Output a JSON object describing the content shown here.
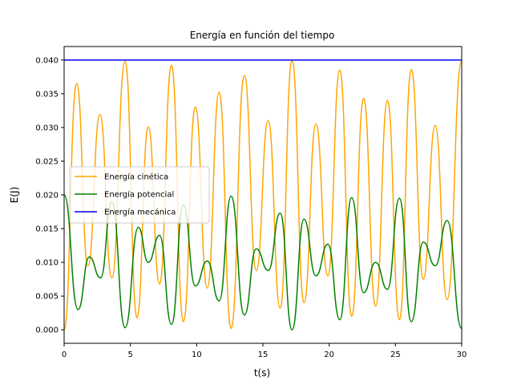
{
  "chart_data": {
    "type": "line",
    "title": "Energía en función del tiempo",
    "xlabel": "t(s)",
    "ylabel": "E(J)",
    "xlim": [
      0,
      30
    ],
    "ylim": [
      -0.002,
      0.042
    ],
    "grid": false,
    "legend_position": "center-left",
    "x_ticks": [
      "0",
      "5",
      "10",
      "15",
      "20",
      "25",
      "30"
    ],
    "y_ticks": [
      "0.000",
      "0.005",
      "0.010",
      "0.015",
      "0.020",
      "0.025",
      "0.030",
      "0.035",
      "0.040"
    ],
    "series": [
      {
        "name": "Energía cinética",
        "color": "#FFA500",
        "x": [
          0,
          0.95,
          1.8,
          2.7,
          3.6,
          4.6,
          5.5,
          6.35,
          7.2,
          8.1,
          9.0,
          9.9,
          10.8,
          11.7,
          12.6,
          13.6,
          14.5,
          15.4,
          16.3,
          17.2,
          18.1,
          19.0,
          19.9,
          20.8,
          21.7,
          22.6,
          23.5,
          24.4,
          25.3,
          26.2,
          27.1,
          28.0,
          28.9,
          30.0
        ],
        "y": [
          0.0,
          0.0365,
          0.0095,
          0.0319,
          0.0077,
          0.0398,
          0.0018,
          0.0301,
          0.0068,
          0.0392,
          0.0012,
          0.033,
          0.0062,
          0.0352,
          0.0002,
          0.0377,
          0.0088,
          0.031,
          0.0032,
          0.04,
          0.004,
          0.0305,
          0.008,
          0.0385,
          0.002,
          0.0343,
          0.0035,
          0.034,
          0.0015,
          0.0386,
          0.0075,
          0.0303,
          0.0045,
          0.0398
        ]
      },
      {
        "name": "Energía potencial",
        "color": "#008000",
        "x": [
          0,
          1.05,
          1.9,
          2.75,
          3.6,
          4.6,
          5.6,
          6.35,
          7.2,
          8.1,
          9.0,
          9.9,
          10.8,
          11.7,
          12.6,
          13.6,
          14.5,
          15.4,
          16.3,
          17.2,
          18.1,
          19.0,
          19.9,
          20.8,
          21.7,
          22.6,
          23.5,
          24.4,
          25.3,
          26.2,
          27.1,
          28.0,
          28.9,
          30.0
        ],
        "y": [
          0.02,
          0.003,
          0.0108,
          0.0077,
          0.019,
          0.0003,
          0.0152,
          0.01,
          0.014,
          0.0008,
          0.0185,
          0.0065,
          0.0102,
          0.0043,
          0.0198,
          0.0022,
          0.012,
          0.0088,
          0.0173,
          0.0,
          0.0164,
          0.008,
          0.0127,
          0.0015,
          0.0196,
          0.0055,
          0.01,
          0.006,
          0.0195,
          0.0012,
          0.013,
          0.0095,
          0.0162,
          0.0002
        ]
      },
      {
        "name": "Energía mecánica",
        "color": "#0000FF",
        "x": [
          0,
          30
        ],
        "y": [
          0.04,
          0.04
        ]
      }
    ]
  }
}
